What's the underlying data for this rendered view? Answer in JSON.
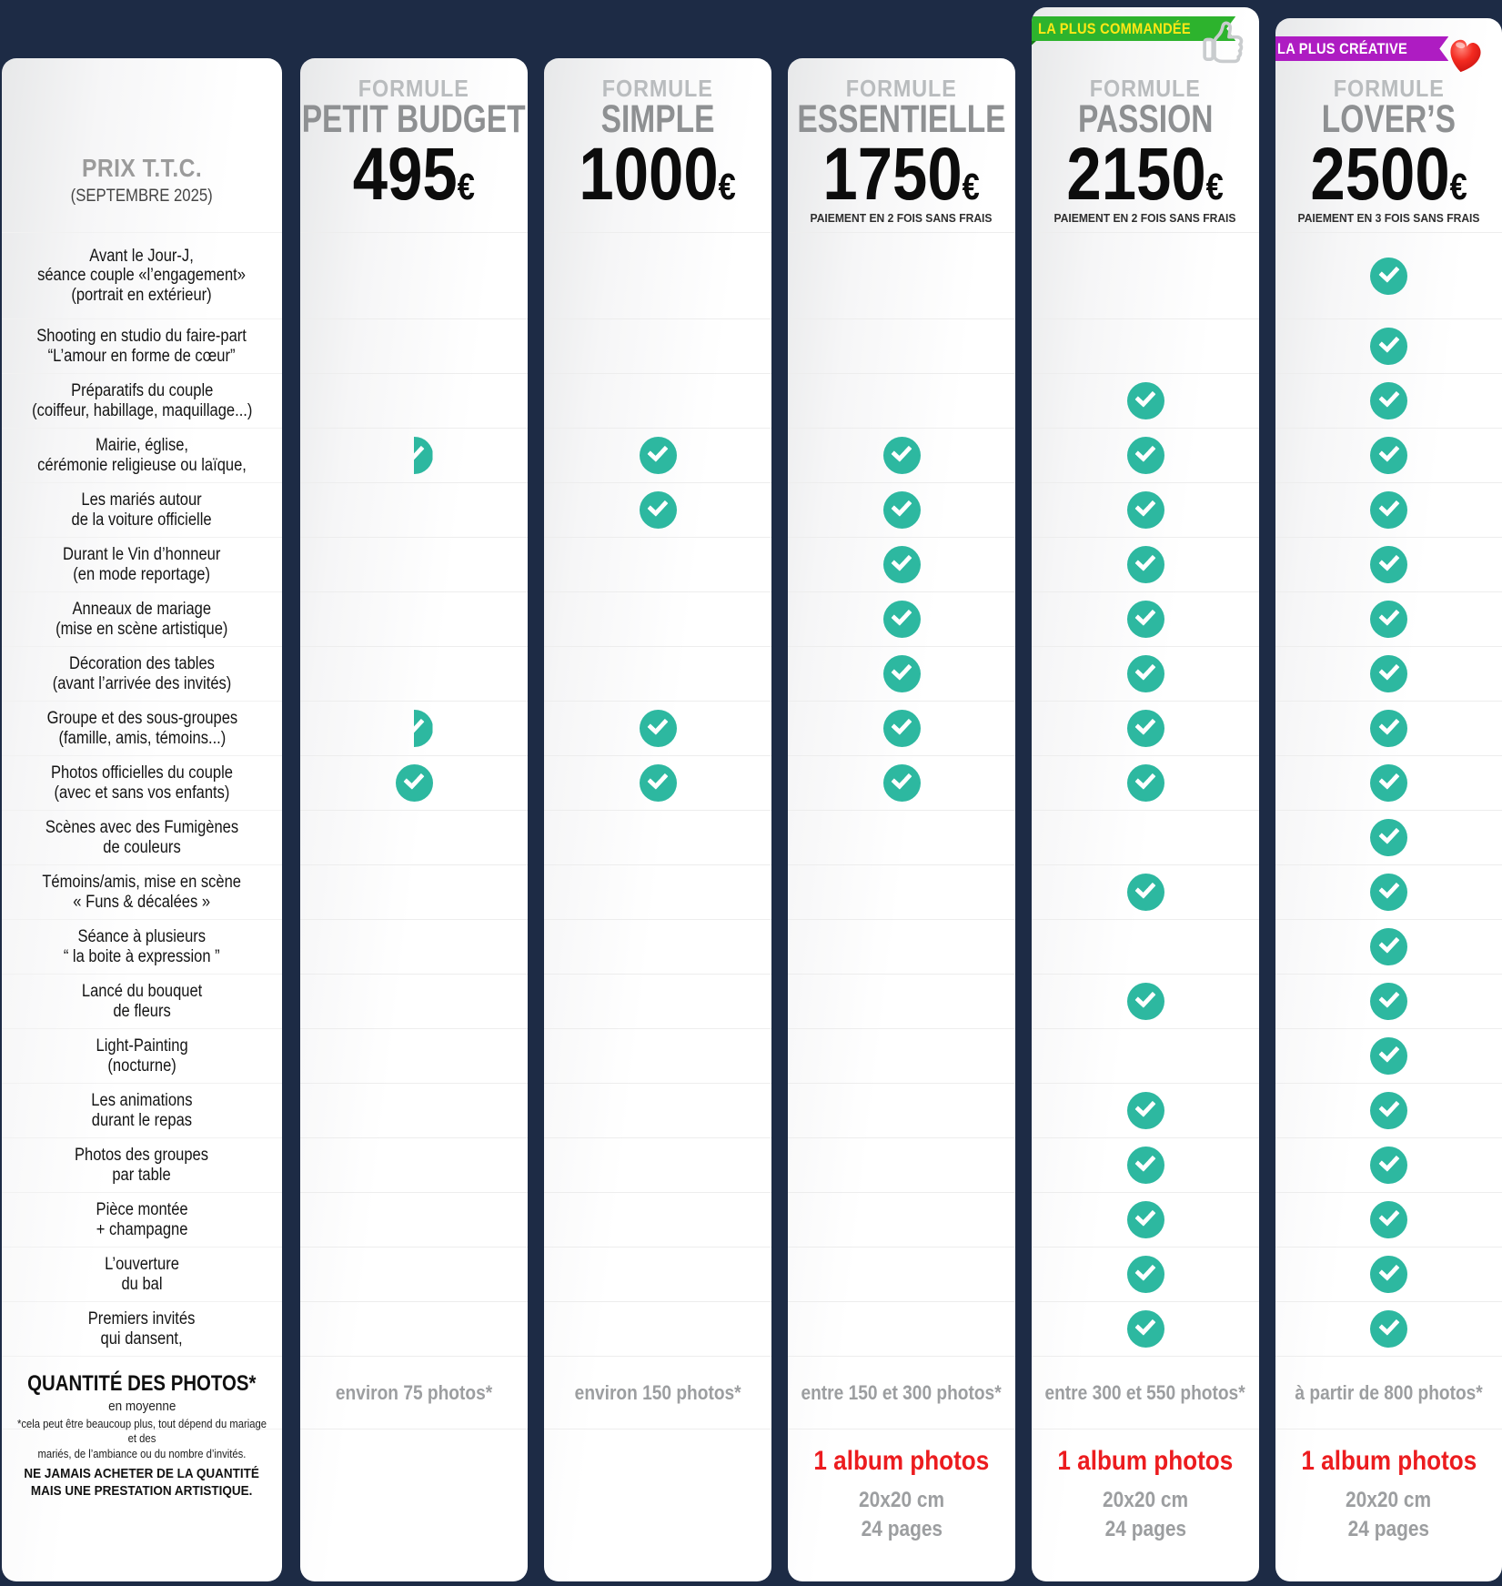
{
  "colors": {
    "background": "#1d2b45",
    "card": "#ffffff",
    "check_teal": "#2db8a0",
    "plan_name_gray": "#8e9092",
    "kicker_gray": "#b9bcbe",
    "price_black": "#0c0c0c",
    "quantity_gray": "#9c9ea0",
    "album_red": "#ec1c1f",
    "badge_green": "#2db32d",
    "badge_green_text": "#ffe816",
    "badge_purple": "#ae1cc2",
    "badge_purple_text": "#ffffff"
  },
  "price_column": {
    "title": "PRIX T.T.C.",
    "subtitle": "(SEPTEMBRE 2025)"
  },
  "shared": {
    "kicker": "FORMULE",
    "currency": "€",
    "album": {
      "title": "1 album photos",
      "size": "20x20 cm",
      "pages": "24 pages"
    }
  },
  "features": [
    "Avant le Jour-J,\nséance couple «l’engagement»\n(portrait en extérieur)",
    "Shooting en studio du faire-part\n“L’amour en forme de cœur”",
    "Préparatifs du couple\n(coiffeur, habillage, maquillage...)",
    "Mairie, église,\ncérémonie religieuse ou laïque,",
    "Les mariés autour\nde la voiture officielle",
    "Durant le Vin d’honneur\n(en mode reportage)",
    "Anneaux de mariage\n(mise en scène artistique)",
    "Décoration des tables\n(avant l’arrivée des invités)",
    "Groupe et des sous-groupes\n(famille, amis, témoins...)",
    "Photos officielles du couple\n(avec et sans vos enfants)",
    "Scènes avec des Fumigènes\nde couleurs",
    "Témoins/amis, mise en scène\n« Funs & décalées »",
    "Séance à plusieurs\n“ la boite à expression ”",
    "Lancé du bouquet\nde fleurs",
    "Light-Painting\n(nocturne)",
    "Les animations\ndurant le repas",
    "Photos des groupes\npar table",
    "Pièce montée\n+ champagne",
    "L’ouverture\ndu bal",
    "Premiers invités\nqui dansent,"
  ],
  "plans": [
    {
      "name": "PETIT BUDGET",
      "price": "495",
      "payment": "",
      "badge": null,
      "emoji": null,
      "quantity": "environ 75 photos*",
      "album": false,
      "checks": [
        0,
        0,
        0,
        0.5,
        0,
        0,
        0,
        0,
        0.5,
        1,
        0,
        0,
        0,
        0,
        0,
        0,
        0,
        0,
        0,
        0
      ]
    },
    {
      "name": "SIMPLE",
      "price": "1000",
      "payment": "",
      "badge": null,
      "emoji": null,
      "quantity": "environ 150 photos*",
      "album": false,
      "checks": [
        0,
        0,
        0,
        1,
        1,
        0,
        0,
        0,
        1,
        1,
        0,
        0,
        0,
        0,
        0,
        0,
        0,
        0,
        0,
        0
      ]
    },
    {
      "name": "ESSENTIELLE",
      "price": "1750",
      "payment": "PAIEMENT EN 2 FOIS SANS FRAIS",
      "badge": null,
      "emoji": null,
      "quantity": "entre 150 et 300 photos*",
      "album": true,
      "checks": [
        0,
        0,
        0,
        1,
        1,
        1,
        1,
        1,
        1,
        1,
        0,
        0,
        0,
        0,
        0,
        0,
        0,
        0,
        0,
        0
      ]
    },
    {
      "name": "PASSION",
      "price": "2150",
      "payment": "PAIEMENT EN 2 FOIS SANS FRAIS",
      "badge": {
        "text": "LA PLUS COMMANDÉE",
        "bg": "#2db32d",
        "color": "#ffe816",
        "fold": "#157d15"
      },
      "emoji": "thumbs-up",
      "quantity": "entre 300 et 550 photos*",
      "album": true,
      "checks": [
        0,
        0,
        1,
        1,
        1,
        1,
        1,
        1,
        1,
        1,
        0,
        1,
        0,
        1,
        0,
        1,
        1,
        1,
        1,
        1
      ]
    },
    {
      "name": "LOVER’S",
      "price": "2500",
      "payment": "PAIEMENT EN 3 FOIS SANS FRAIS",
      "badge": {
        "text": "LA PLUS CRÉATIVE",
        "bg": "#ae1cc2",
        "color": "#ffffff",
        "fold": "#6d0e80"
      },
      "emoji": "heart",
      "quantity": "à partir de 800 photos*",
      "album": true,
      "checks": [
        1,
        1,
        1,
        1,
        1,
        1,
        1,
        1,
        1,
        1,
        1,
        1,
        1,
        1,
        1,
        1,
        1,
        1,
        1,
        1
      ]
    }
  ],
  "quantity_row": {
    "label": "QUANTITÉ DES PHOTOS*",
    "sublabel": "en moyenne"
  },
  "footnote": {
    "text": "*cela peut être beaucoup plus, tout dépend du mariage et des\nmariés, de l’ambiance ou du nombre d’invités.",
    "bold": "NE JAMAIS ACHETER DE LA QUANTITÉ\nMAIS UNE PRESTATION ARTISTIQUE."
  }
}
